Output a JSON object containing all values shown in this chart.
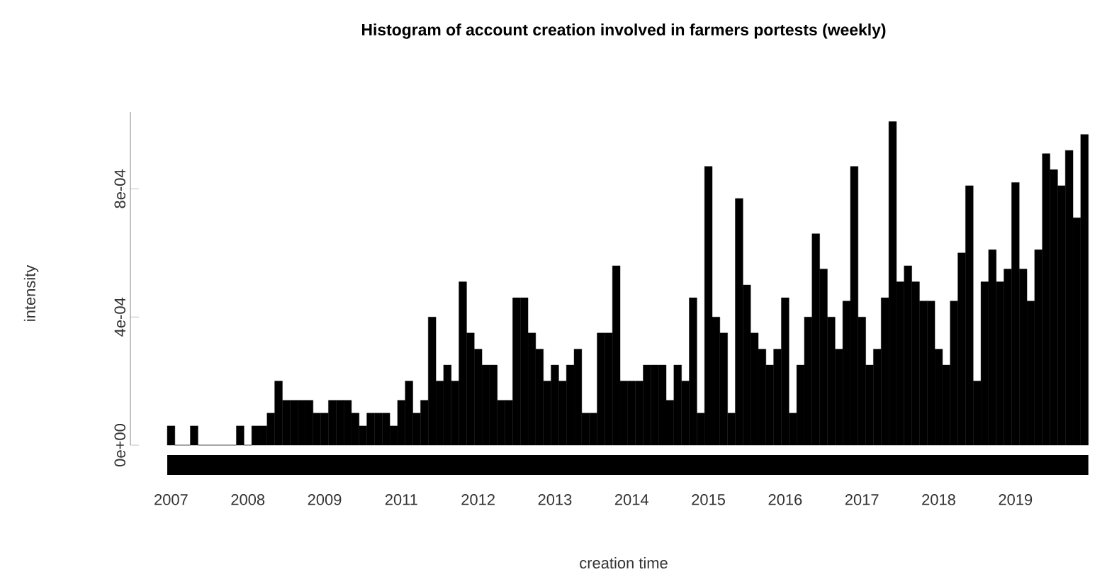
{
  "chart_data": {
    "type": "bar",
    "title": "Histogram of account creation involved in farmers portests (weekly)",
    "xlabel": "creation time",
    "ylabel": "intensity",
    "categories": [
      "2007",
      null,
      null,
      null,
      null,
      null,
      null,
      null,
      null,
      null,
      "2008",
      null,
      null,
      null,
      null,
      null,
      null,
      null,
      null,
      null,
      "2009",
      null,
      null,
      null,
      null,
      null,
      null,
      null,
      null,
      null,
      "2011",
      null,
      null,
      null,
      null,
      null,
      null,
      null,
      null,
      null,
      "2012",
      null,
      null,
      null,
      null,
      null,
      null,
      null,
      null,
      null,
      "2013",
      null,
      null,
      null,
      null,
      null,
      null,
      null,
      null,
      null,
      "2014",
      null,
      null,
      null,
      null,
      null,
      null,
      null,
      null,
      null,
      "2015",
      null,
      null,
      null,
      null,
      null,
      null,
      null,
      null,
      null,
      "2016",
      null,
      null,
      null,
      null,
      null,
      null,
      null,
      null,
      null,
      "2017",
      null,
      null,
      null,
      null,
      null,
      null,
      null,
      null,
      null,
      "2018",
      null,
      null,
      null,
      null,
      null,
      null,
      null,
      null,
      null,
      "2019",
      null,
      null,
      null,
      null,
      null,
      null,
      null,
      null,
      null
    ],
    "values": [
      6e-05,
      0,
      0,
      6e-05,
      0,
      0,
      0,
      0,
      0,
      6e-05,
      0,
      6e-05,
      6e-05,
      0.0001,
      0.0002,
      0.00014,
      0.00014,
      0.00014,
      0.00014,
      0.0001,
      0.0001,
      0.00014,
      0.00014,
      0.00014,
      0.0001,
      6e-05,
      0.0001,
      0.0001,
      0.0001,
      6e-05,
      0.00014,
      0.0002,
      0.0001,
      0.00014,
      0.0004,
      0.0002,
      0.00025,
      0.0002,
      0.00051,
      0.00035,
      0.0003,
      0.00025,
      0.00025,
      0.00014,
      0.00014,
      0.00046,
      0.00046,
      0.00035,
      0.0003,
      0.0002,
      0.00025,
      0.0002,
      0.00025,
      0.0003,
      0.0001,
      0.0001,
      0.00035,
      0.00035,
      0.00056,
      0.0002,
      0.0002,
      0.0002,
      0.00025,
      0.00025,
      0.00025,
      0.00014,
      0.00025,
      0.0002,
      0.00046,
      0.0001,
      0.00087,
      0.0004,
      0.00035,
      0.0001,
      0.00077,
      0.0005,
      0.00035,
      0.0003,
      0.00025,
      0.0003,
      0.00046,
      0.0001,
      0.00025,
      0.0004,
      0.00066,
      0.00055,
      0.0004,
      0.0003,
      0.00045,
      0.00087,
      0.0004,
      0.00025,
      0.0003,
      0.00046,
      0.00101,
      0.00051,
      0.00056,
      0.00051,
      0.00045,
      0.00045,
      0.0003,
      0.00025,
      0.00045,
      0.0006,
      0.00081,
      0.0002,
      0.00051,
      0.00061,
      0.00051,
      0.00055,
      0.00082,
      0.00055,
      0.00045,
      0.00061,
      0.00091,
      0.00086,
      0.00081,
      0.00092,
      0.00071,
      0.00097
    ],
    "color": "#000000",
    "ylim": [
      0,
      0.00104
    ],
    "yticks": [
      {
        "value": 0,
        "label": "0e+00"
      },
      {
        "value": 0.0004,
        "label": "4e-04"
      },
      {
        "value": 0.0008,
        "label": "8e-04"
      }
    ]
  }
}
